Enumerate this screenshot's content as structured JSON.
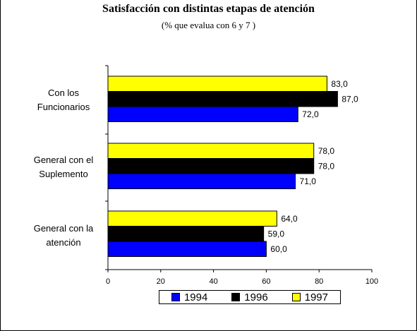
{
  "chart_data": {
    "type": "bar",
    "orientation": "horizontal",
    "title": "Satisfacción con distintas etapas de atención",
    "subtitle": "(% que evalua con 6 y 7 )",
    "categories": [
      "Con los Funcionarios",
      "General con el Suplemento",
      "General con la atención"
    ],
    "category_lines": [
      [
        "Con los",
        "Funcionarios"
      ],
      [
        "General con el",
        "Suplemento"
      ],
      [
        "General con la",
        "atención"
      ]
    ],
    "series": [
      {
        "name": "1997",
        "color": "#FFFF00",
        "values": [
          83.0,
          78.0,
          64.0
        ],
        "labels": [
          "83,0",
          "78,0",
          "64,0"
        ]
      },
      {
        "name": "1996",
        "color": "#000000",
        "values": [
          87.0,
          78.0,
          59.0
        ],
        "labels": [
          "87,0",
          "78,0",
          "59,0"
        ]
      },
      {
        "name": "1994",
        "color": "#0000FF",
        "values": [
          72.0,
          71.0,
          60.0
        ],
        "labels": [
          "72,0",
          "71,0",
          "60,0"
        ]
      }
    ],
    "xlim": [
      0,
      100
    ],
    "xticks": [
      0,
      20,
      40,
      60,
      80,
      100
    ],
    "xlabel": "",
    "ylabel": "",
    "grid": false,
    "legend_position": "bottom"
  },
  "legend": [
    {
      "name": "1994",
      "color": "#0000FF"
    },
    {
      "name": "1996",
      "color": "#000000"
    },
    {
      "name": "1997",
      "color": "#FFFF00"
    }
  ]
}
